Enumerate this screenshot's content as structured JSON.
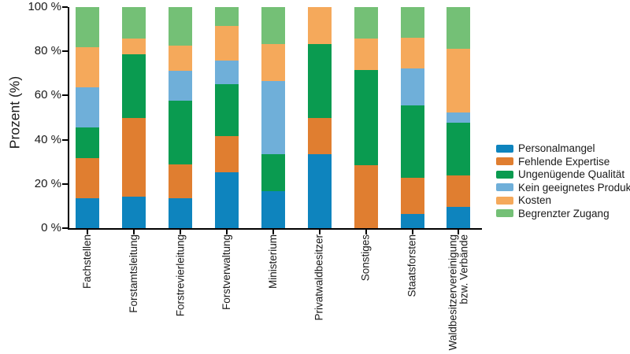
{
  "chart_data": {
    "type": "bar",
    "stacked": true,
    "percent_stacked": true,
    "title": "",
    "xlabel": "",
    "ylabel": "Prozent (%)",
    "ylim": [
      0,
      100
    ],
    "grid": false,
    "legend_position": "right",
    "axis_color": "#000000",
    "background_color": "#ffffff",
    "yticks": [
      {
        "value": 0,
        "label": "0 %"
      },
      {
        "value": 20,
        "label": "20 %"
      },
      {
        "value": 40,
        "label": "40 %"
      },
      {
        "value": 60,
        "label": "60 %"
      },
      {
        "value": 80,
        "label": "80 %"
      },
      {
        "value": 100,
        "label": "100 %"
      }
    ],
    "categories": [
      "Fachstellen",
      "Forstamtsleitung",
      "Forstrevierleitung",
      "Forstverwaltung",
      "Ministerium",
      "Privatwaldbesitzer",
      "Sonstiges",
      "Staatsforsten",
      "Waldbesitzervereinigung\nbzw. Verbände"
    ],
    "series": [
      {
        "name": "Personalmangel",
        "color": "#0e84be",
        "values": [
          13.6,
          14.3,
          13.5,
          25.4,
          16.7,
          33.3,
          0,
          6.5,
          9.5
        ]
      },
      {
        "name": "Fehlende Expertise",
        "color": "#e07e30",
        "values": [
          18.2,
          35.7,
          15.4,
          16.4,
          0,
          16.7,
          28.6,
          16.4,
          14.3
        ]
      },
      {
        "name": "Ungenügende Qualität",
        "color": "#0a9b50",
        "values": [
          13.6,
          28.6,
          28.8,
          23.3,
          16.7,
          33.3,
          42.8,
          32.6,
          23.8
        ]
      },
      {
        "name": "Kein geeignetes Produkt",
        "color": "#6fafd9",
        "values": [
          18.2,
          0,
          13.5,
          10.8,
          33.3,
          0,
          0,
          16.6,
          4.8
        ]
      },
      {
        "name": "Kosten",
        "color": "#f5a95b",
        "values": [
          18.2,
          7.1,
          11.5,
          15.4,
          16.6,
          16.7,
          14.3,
          14.0,
          28.6
        ]
      },
      {
        "name": "Begrenzter Zugang",
        "color": "#74c076",
        "values": [
          18.2,
          14.3,
          17.3,
          8.7,
          16.7,
          0,
          14.3,
          13.9,
          19.0
        ]
      }
    ]
  }
}
